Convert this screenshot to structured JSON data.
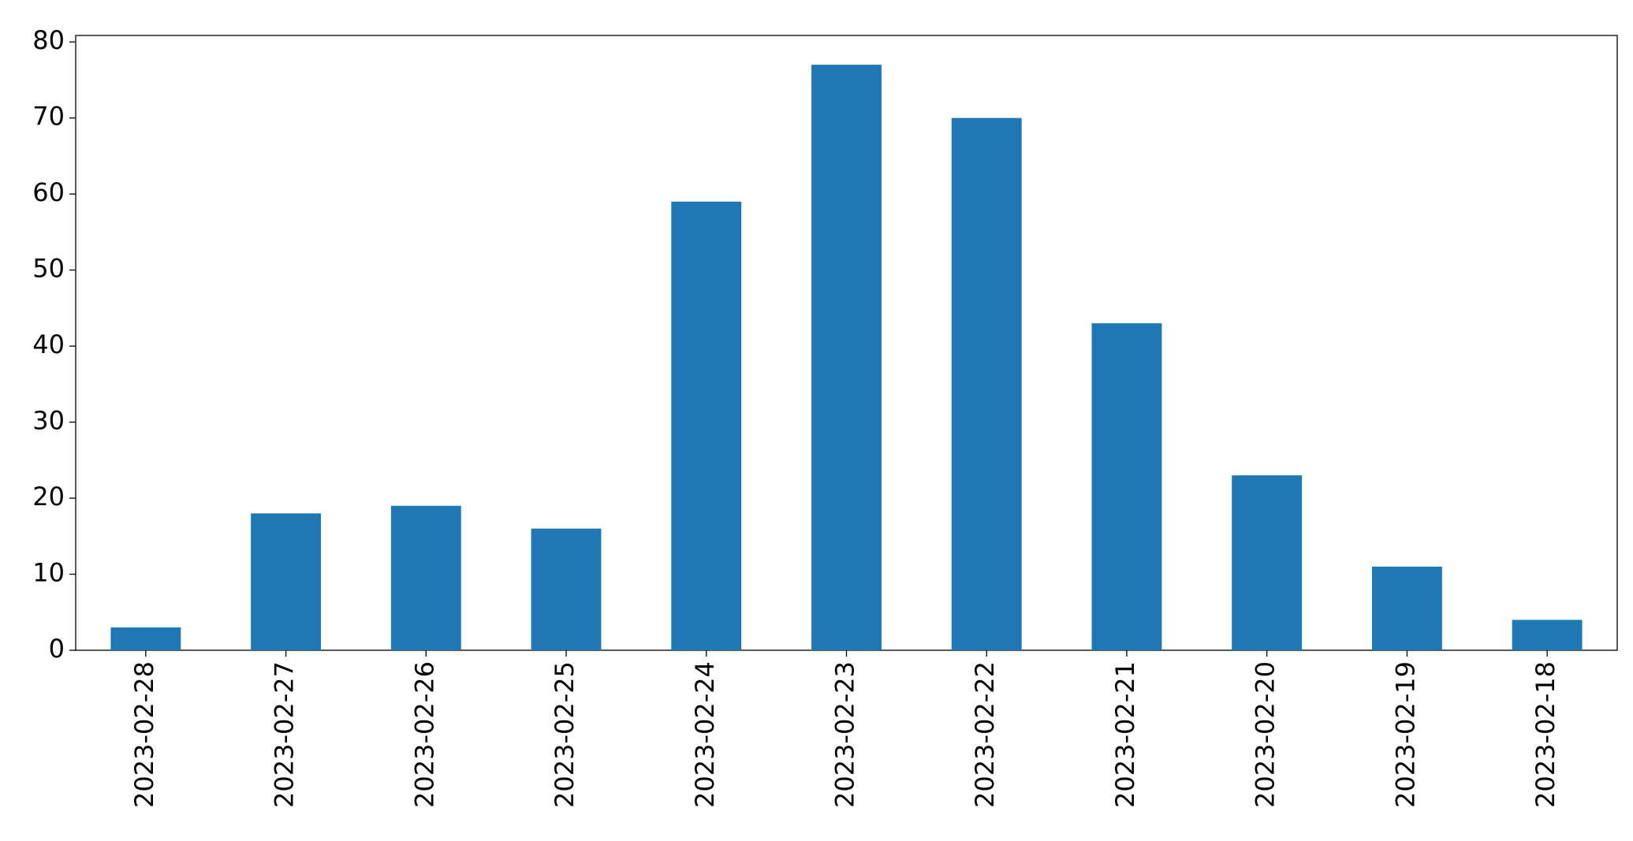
{
  "chart_data": {
    "type": "bar",
    "categories": [
      "2023-02-28",
      "2023-02-27",
      "2023-02-26",
      "2023-02-25",
      "2023-02-24",
      "2023-02-23",
      "2023-02-22",
      "2023-02-21",
      "2023-02-20",
      "2023-02-19",
      "2023-02-18"
    ],
    "values": [
      3,
      18,
      19,
      16,
      59,
      77,
      70,
      43,
      23,
      11,
      4
    ],
    "color": "#1f77b4",
    "ylim": [
      0,
      80.85
    ],
    "yticks": [
      0,
      10,
      20,
      30,
      40,
      50,
      60,
      70,
      80
    ],
    "grid": false
  }
}
